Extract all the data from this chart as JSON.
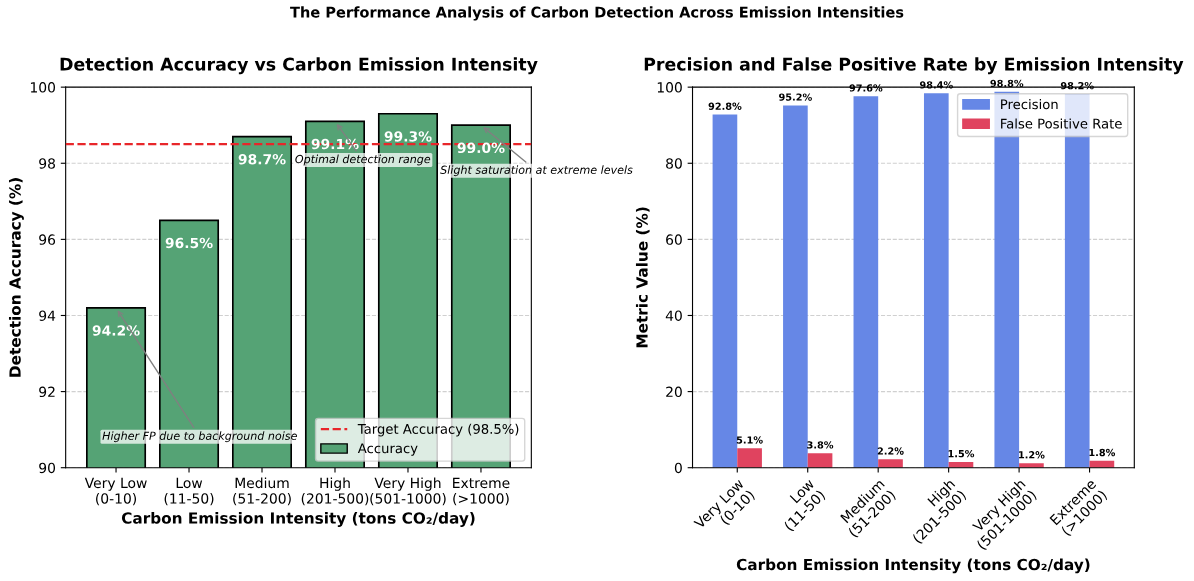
{
  "chart_data": [
    {
      "type": "bar",
      "title": "Detection Accuracy vs Carbon Emission Intensity",
      "xlabel": "Carbon Emission Intensity (tons CO₂/day)",
      "ylabel": "Detection Accuracy (%)",
      "categories": [
        "Very Low\n(0-10)",
        "Low\n(11-50)",
        "Medium\n(51-200)",
        "High\n(201-500)",
        "Very High\n(501-1000)",
        "Extreme\n(>1000)"
      ],
      "series": [
        {
          "name": "Accuracy",
          "color": "#55a375",
          "values": [
            94.2,
            96.5,
            98.7,
            99.1,
            99.3,
            99.0
          ],
          "value_labels": [
            "94.2%",
            "96.5%",
            "98.7%",
            "99.1%",
            "99.3%",
            "99.0%"
          ]
        }
      ],
      "ylim": [
        90,
        100
      ],
      "yticks": [
        90,
        92,
        94,
        96,
        98,
        100
      ],
      "grid": "y",
      "legend": "bottom right",
      "ref_lines": [
        {
          "axis": "y",
          "value": 98.5,
          "label": "Target Accuracy (98.5%)",
          "color": "#e8262a",
          "line_style": "dashed"
        }
      ],
      "annotations": [
        "The Performance Analysis of Carbon Detection Across Emission Intensities",
        {
          "text": "Higher FP due to background noise",
          "x": "Very Low\n(0-10)",
          "y": 94.2
        },
        {
          "text": "Optimal detection range",
          "x": "High\n(201-500)",
          "y": 99.1
        },
        {
          "text": "Slight saturation at extreme levels",
          "x": "Extreme\n(>1000)",
          "y": 99.0
        }
      ]
    },
    {
      "type": "bar",
      "title": "Precision and False Positive Rate by Emission Intensity",
      "xlabel": "Carbon Emission Intensity (tons CO₂/day)",
      "ylabel": "Metric Value (%)",
      "categories": [
        "Very Low\n(0-10)",
        "Low\n(11-50)",
        "Medium\n(51-200)",
        "High\n(201-500)",
        "Very High\n(501-1000)",
        "Extreme\n(>1000)"
      ],
      "series": [
        {
          "name": "Precision",
          "color": "#6687e6",
          "values": [
            92.8,
            95.2,
            97.6,
            98.4,
            98.8,
            98.2
          ],
          "value_labels": [
            "92.8%",
            "95.2%",
            "97.6%",
            "98.4%",
            "98.8%",
            "98.2%"
          ]
        },
        {
          "name": "False Positive Rate",
          "color": "#e0435f",
          "values": [
            5.1,
            3.8,
            2.2,
            1.5,
            1.2,
            1.8
          ],
          "value_labels": [
            "5.1%",
            "3.8%",
            "2.2%",
            "1.5%",
            "1.2%",
            "1.8%"
          ]
        }
      ],
      "ylim": [
        0,
        100
      ],
      "yticks": [
        0,
        20,
        40,
        60,
        80,
        100
      ],
      "grid": "y",
      "legend": "top right"
    }
  ]
}
